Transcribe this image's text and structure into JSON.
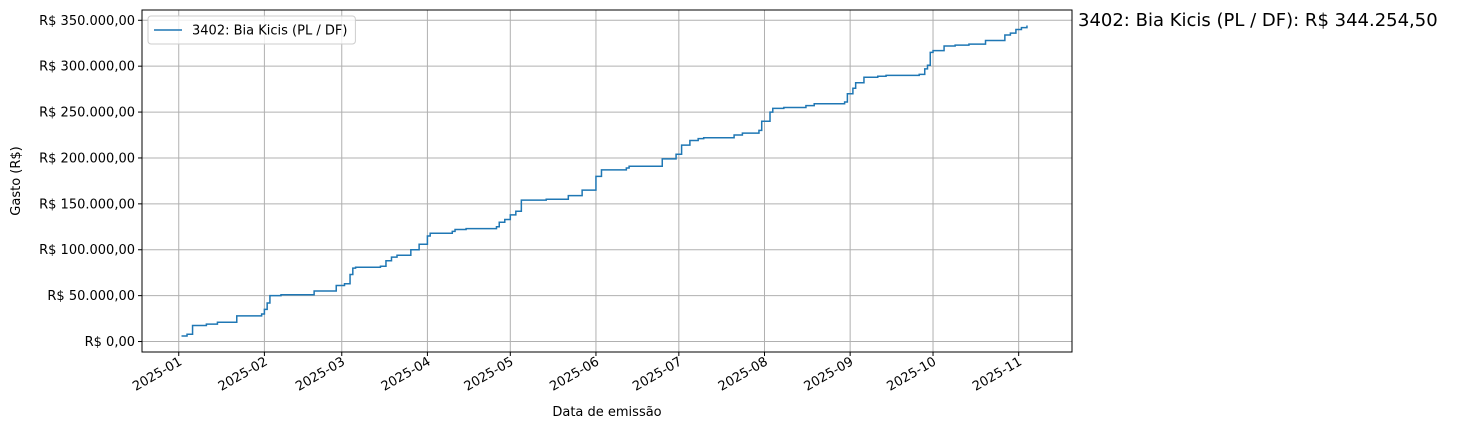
{
  "chart_data": {
    "type": "step",
    "annotation": "3402: Bia Kicis (PL / DF): R$ 344.254,50",
    "xlabel": "Data de emissão",
    "ylabel": "Gasto (R$)",
    "x": [
      1,
      3,
      5,
      10,
      14,
      21,
      30,
      31,
      32,
      33,
      37,
      49,
      57,
      60,
      62,
      63,
      64,
      73,
      75,
      77,
      79,
      84,
      87,
      90,
      91,
      99,
      100,
      104,
      115,
      116,
      118,
      120,
      122,
      124,
      133,
      141,
      146,
      151,
      153,
      162,
      163,
      175,
      180,
      182,
      185,
      188,
      190,
      201,
      204,
      210,
      211,
      214,
      215,
      219,
      227,
      230,
      241,
      242,
      244,
      245,
      248,
      253,
      256,
      268,
      270,
      271,
      272,
      273,
      277,
      281,
      286,
      292,
      299,
      301,
      303,
      305,
      307
    ],
    "series": [
      {
        "name": "3402: Bia Kicis (PL / DF)",
        "color": "#1f77b4",
        "values": [
          6000,
          8000,
          17500,
          19000,
          21000,
          28000,
          30000,
          35000,
          42000,
          50000,
          51000,
          55000,
          61000,
          63000,
          73000,
          80000,
          81000,
          82000,
          88000,
          92000,
          94000,
          100000,
          106000,
          115000,
          118000,
          120000,
          122000,
          123000,
          125000,
          130000,
          133000,
          138000,
          142000,
          154000,
          155000,
          159000,
          165000,
          180000,
          187000,
          189000,
          191000,
          199000,
          204000,
          214000,
          219000,
          221000,
          222000,
          225000,
          227000,
          230000,
          240000,
          250000,
          254000,
          255000,
          257000,
          259000,
          261000,
          270000,
          276000,
          282000,
          288000,
          289000,
          290000,
          291000,
          297000,
          301000,
          315000,
          317000,
          322000,
          323000,
          324000,
          328000,
          334000,
          336000,
          340000,
          342000,
          344254.5
        ]
      }
    ],
    "xlim": [
      -13.3,
      323.3
    ],
    "xticks": [
      {
        "value": 0,
        "label": "2025-01"
      },
      {
        "value": 31,
        "label": "2025-02"
      },
      {
        "value": 59,
        "label": "2025-03"
      },
      {
        "value": 90,
        "label": "2025-04"
      },
      {
        "value": 120,
        "label": "2025-05"
      },
      {
        "value": 151,
        "label": "2025-06"
      },
      {
        "value": 181,
        "label": "2025-07"
      },
      {
        "value": 212,
        "label": "2025-08"
      },
      {
        "value": 243,
        "label": "2025-09"
      },
      {
        "value": 273,
        "label": "2025-10"
      },
      {
        "value": 304,
        "label": "2025-11"
      }
    ],
    "ylim": [
      -11400,
      361200
    ],
    "yticks": [
      {
        "value": 0,
        "label": "R$ 0,00"
      },
      {
        "value": 50000,
        "label": "R$ 50.000,00"
      },
      {
        "value": 100000,
        "label": "R$ 100.000,00"
      },
      {
        "value": 150000,
        "label": "R$ 150.000,00"
      },
      {
        "value": 200000,
        "label": "R$ 200.000,00"
      },
      {
        "value": 250000,
        "label": "R$ 250.000,00"
      },
      {
        "value": 300000,
        "label": "R$ 300.000,00"
      },
      {
        "value": 350000,
        "label": "R$ 350.000,00"
      }
    ],
    "grid": true,
    "legend": "upper left"
  }
}
